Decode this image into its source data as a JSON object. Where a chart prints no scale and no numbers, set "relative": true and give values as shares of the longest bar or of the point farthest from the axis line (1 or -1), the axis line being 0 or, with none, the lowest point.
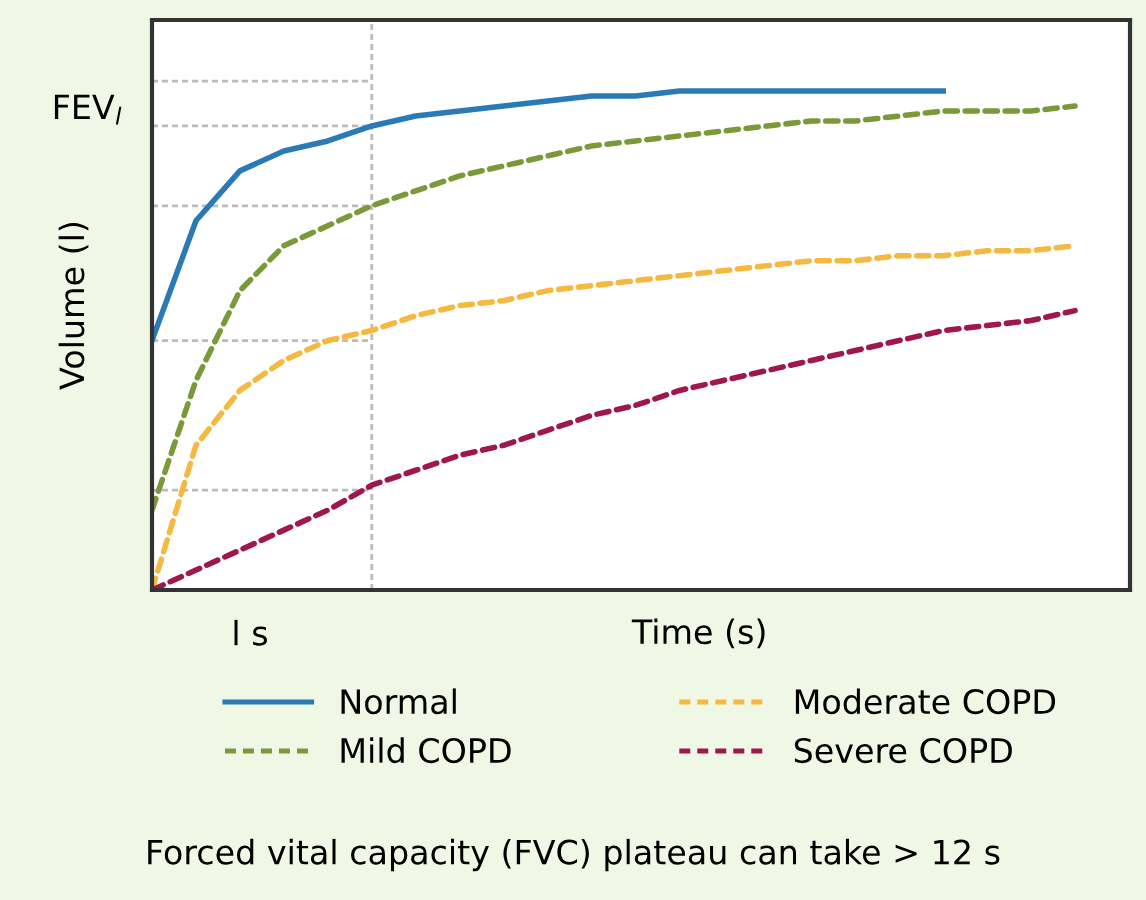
{
  "chart_data": {
    "type": "line",
    "relative": true,
    "xlabel": "Time (s)",
    "ylabel": "Volume (l)",
    "categories": [
      null,
      null,
      null,
      null,
      null,
      null,
      null,
      null,
      null,
      null,
      null,
      null,
      null,
      null,
      null,
      null,
      null,
      null,
      null,
      null,
      null,
      null,
      null
    ],
    "series": [
      {
        "name": "Normal",
        "color": "#2a7ab8",
        "line_style": "solid",
        "values": [
          0.5,
          0.74,
          0.84,
          0.88,
          0.9,
          0.93,
          0.95,
          0.96,
          0.97,
          0.98,
          0.99,
          0.99,
          1.0,
          1.0,
          1.0,
          1.0,
          1.0,
          1.0,
          1.0,
          null,
          null,
          null,
          null
        ]
      },
      {
        "name": "Mild COPD",
        "color": "#7a9a3a",
        "line_style": "dashed",
        "values": [
          0.16,
          0.42,
          0.6,
          0.69,
          0.73,
          0.77,
          0.8,
          0.83,
          0.85,
          0.87,
          0.89,
          0.9,
          0.91,
          0.92,
          0.93,
          0.94,
          0.94,
          0.95,
          0.96,
          0.96,
          0.96,
          0.97,
          null
        ]
      },
      {
        "name": "Moderate COPD",
        "color": "#f5b841",
        "line_style": "dashed",
        "values": [
          0,
          0.29,
          0.4,
          0.46,
          0.5,
          0.52,
          0.55,
          0.57,
          0.58,
          0.6,
          0.61,
          0.62,
          0.63,
          0.64,
          0.65,
          0.66,
          0.66,
          0.67,
          0.67,
          0.68,
          0.68,
          0.69,
          null
        ]
      },
      {
        "name": "Severe COPD",
        "color": "#a0174e",
        "line_style": "dashed",
        "values": [
          0,
          0.04,
          0.08,
          0.12,
          0.16,
          0.21,
          0.24,
          0.27,
          0.29,
          0.32,
          0.35,
          0.37,
          0.4,
          0.42,
          0.44,
          0.46,
          0.48,
          0.5,
          0.52,
          0.53,
          0.54,
          0.56,
          null
        ]
      }
    ],
    "ref_lines": [
      {
        "axis": "y",
        "value": 1.02,
        "color": "#bbbbbb",
        "line_style": "dashed"
      },
      {
        "axis": "y",
        "value": 0.93,
        "label": "FEV$_{l}$",
        "color": "#bbbbbb",
        "line_style": "dashed"
      },
      {
        "axis": "y",
        "value": 0.77,
        "color": "#bbbbbb",
        "line_style": "dashed"
      },
      {
        "axis": "y",
        "value": 0.5,
        "color": "#bbbbbb",
        "line_style": "dashed"
      },
      {
        "axis": "y",
        "value": 0.2,
        "color": "#bbbbbb",
        "line_style": "dashed"
      }
    ],
    "legend": "bottom",
    "grid": false,
    "annotations": [
      "l s",
      "Forced vital capacity (FVC) plateau can take > 12 s"
    ]
  }
}
